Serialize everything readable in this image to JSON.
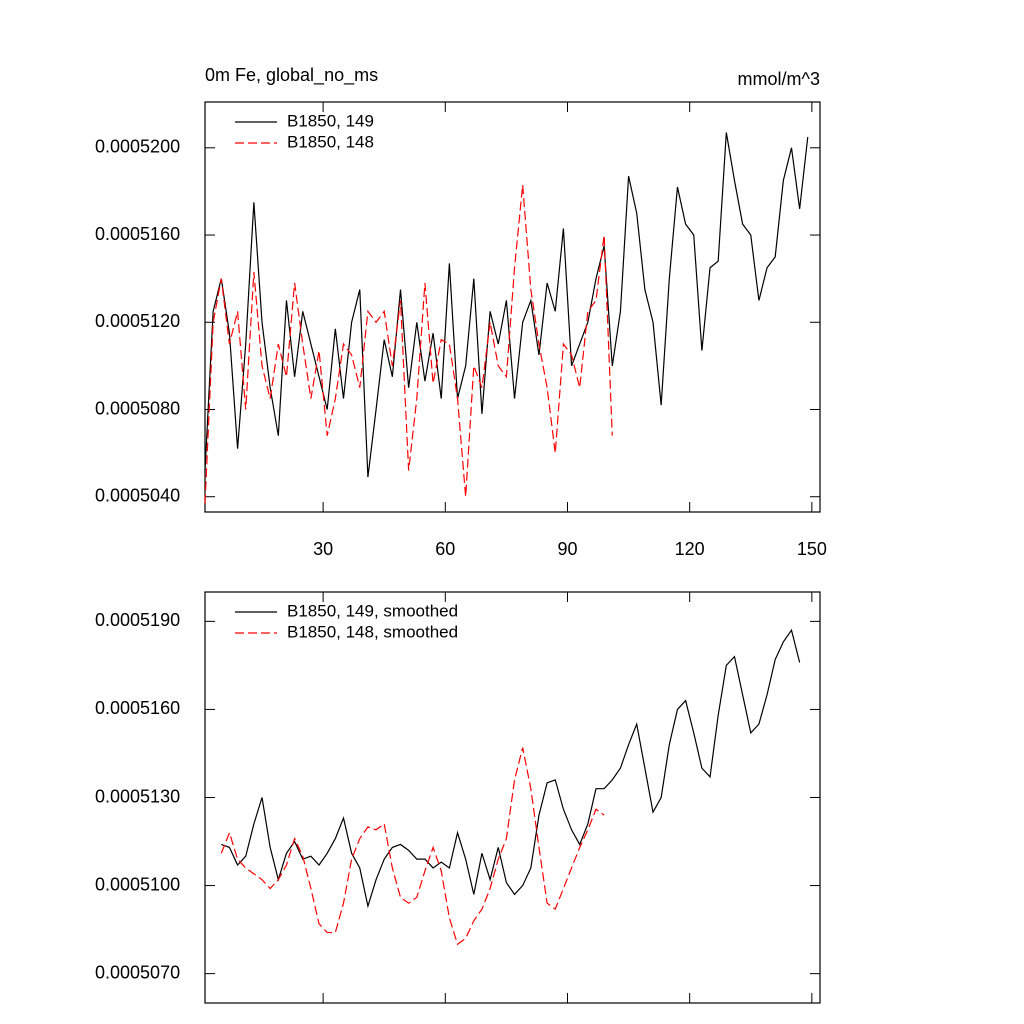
{
  "chart_data": [
    {
      "type": "line",
      "title": "0m Fe, global_no_ms",
      "right_title": "mmol/m^3",
      "xlim": [
        1,
        152
      ],
      "xticks": [
        30,
        60,
        90,
        120,
        150
      ],
      "xtick_labels": true,
      "ylim": [
        0.0005033,
        0.0005221
      ],
      "yticks": [
        {
          "value": 0.000504,
          "label": "0.0005040"
        },
        {
          "value": 0.000508,
          "label": "0.0005080"
        },
        {
          "value": 0.000512,
          "label": "0.0005120"
        },
        {
          "value": 0.000516,
          "label": "0.0005160"
        },
        {
          "value": 0.00052,
          "label": "0.0005200"
        }
      ],
      "series": [
        {
          "name": "B1850, 149",
          "color": "#000000",
          "dash": false,
          "x": [
            1,
            3,
            5,
            7,
            9,
            11,
            13,
            15,
            17,
            19,
            21,
            23,
            25,
            27,
            29,
            31,
            33,
            35,
            37,
            39,
            41,
            43,
            45,
            47,
            49,
            51,
            53,
            55,
            57,
            59,
            61,
            63,
            65,
            67,
            69,
            71,
            73,
            75,
            77,
            79,
            81,
            83,
            85,
            87,
            89,
            91,
            93,
            95,
            97,
            99,
            101,
            103,
            105,
            107,
            109,
            111,
            113,
            115,
            117,
            119,
            121,
            123,
            125,
            127,
            129,
            131,
            133,
            135,
            137,
            139,
            141,
            143,
            145,
            147,
            149
          ],
          "values": [
            0.0005052,
            0.0005125,
            0.000514,
            0.0005115,
            0.0005062,
            0.000511,
            0.0005175,
            0.000512,
            0.000509,
            0.0005068,
            0.000513,
            0.0005095,
            0.0005125,
            0.000511,
            0.0005095,
            0.000508,
            0.0005117,
            0.0005085,
            0.000512,
            0.0005135,
            0.0005049,
            0.000508,
            0.0005112,
            0.0005095,
            0.0005135,
            0.000509,
            0.000512,
            0.0005093,
            0.0005115,
            0.0005085,
            0.0005147,
            0.0005085,
            0.00051,
            0.000514,
            0.0005078,
            0.0005125,
            0.000511,
            0.000513,
            0.0005085,
            0.000512,
            0.000513,
            0.0005105,
            0.0005138,
            0.0005125,
            0.0005163,
            0.00051,
            0.000511,
            0.000512,
            0.000514,
            0.0005155,
            0.00051,
            0.0005125,
            0.0005187,
            0.000517,
            0.0005135,
            0.000512,
            0.0005082,
            0.000514,
            0.0005182,
            0.0005165,
            0.000516,
            0.0005107,
            0.0005145,
            0.0005148,
            0.0005207,
            0.0005185,
            0.0005165,
            0.000516,
            0.000513,
            0.0005145,
            0.000515,
            0.0005185,
            0.00052,
            0.0005172,
            0.0005205
          ]
        },
        {
          "name": "B1850, 148",
          "color": "#ff0000",
          "dash": true,
          "x": [
            1,
            3,
            5,
            7,
            9,
            11,
            13,
            15,
            17,
            19,
            21,
            23,
            25,
            27,
            29,
            31,
            33,
            35,
            37,
            39,
            41,
            43,
            45,
            47,
            49,
            51,
            53,
            55,
            57,
            59,
            61,
            63,
            65,
            67,
            69,
            71,
            73,
            75,
            77,
            79,
            81,
            83,
            85,
            87,
            89,
            91,
            93,
            95,
            97,
            99,
            101
          ],
          "values": [
            0.0005037,
            0.000512,
            0.000514,
            0.000511,
            0.0005125,
            0.000508,
            0.0005143,
            0.00051,
            0.0005085,
            0.000511,
            0.0005095,
            0.0005138,
            0.000511,
            0.0005085,
            0.0005107,
            0.0005068,
            0.0005085,
            0.000511,
            0.0005105,
            0.000509,
            0.0005125,
            0.000512,
            0.0005125,
            0.00051,
            0.000513,
            0.0005052,
            0.0005085,
            0.0005138,
            0.0005092,
            0.0005112,
            0.000511,
            0.0005085,
            0.000504,
            0.00051,
            0.000509,
            0.000512,
            0.00051,
            0.0005095,
            0.0005145,
            0.0005183,
            0.0005135,
            0.000511,
            0.000509,
            0.000506,
            0.000511,
            0.0005105,
            0.000509,
            0.0005125,
            0.000513,
            0.000516,
            0.0005068
          ]
        }
      ]
    },
    {
      "type": "line",
      "xlim": [
        1,
        152
      ],
      "xticks": [
        30,
        60,
        90,
        120,
        150
      ],
      "xtick_labels": false,
      "ylim": [
        0.000506,
        0.00052
      ],
      "yticks": [
        {
          "value": 0.000507,
          "label": "0.0005070"
        },
        {
          "value": 0.00051,
          "label": "0.0005100"
        },
        {
          "value": 0.000513,
          "label": "0.0005130"
        },
        {
          "value": 0.000516,
          "label": "0.0005160"
        },
        {
          "value": 0.000519,
          "label": "0.0005190"
        }
      ],
      "series": [
        {
          "name": "B1850, 149, smoothed",
          "color": "#000000",
          "dash": false,
          "x": [
            5,
            7,
            9,
            11,
            13,
            15,
            17,
            19,
            21,
            23,
            25,
            27,
            29,
            31,
            33,
            35,
            37,
            39,
            41,
            43,
            45,
            47,
            49,
            51,
            53,
            55,
            57,
            59,
            61,
            63,
            65,
            67,
            69,
            71,
            73,
            75,
            77,
            79,
            81,
            83,
            85,
            87,
            89,
            91,
            93,
            95,
            97,
            99,
            101,
            103,
            105,
            107,
            109,
            111,
            113,
            115,
            117,
            119,
            121,
            123,
            125,
            127,
            129,
            131,
            133,
            135,
            137,
            139,
            141,
            143,
            145,
            147
          ],
          "values": [
            0.0005114,
            0.0005113,
            0.0005107,
            0.000511,
            0.0005121,
            0.000513,
            0.0005113,
            0.0005102,
            0.0005111,
            0.0005115,
            0.0005109,
            0.000511,
            0.0005107,
            0.0005111,
            0.0005116,
            0.0005123,
            0.0005111,
            0.0005106,
            0.0005093,
            0.0005102,
            0.0005109,
            0.0005113,
            0.0005114,
            0.0005112,
            0.0005109,
            0.0005109,
            0.0005106,
            0.0005108,
            0.0005106,
            0.0005118,
            0.0005109,
            0.0005097,
            0.0005111,
            0.0005102,
            0.0005113,
            0.0005101,
            0.0005097,
            0.00051,
            0.0005106,
            0.0005124,
            0.0005135,
            0.0005136,
            0.0005126,
            0.0005119,
            0.0005114,
            0.0005121,
            0.0005133,
            0.0005133,
            0.0005136,
            0.000514,
            0.0005148,
            0.0005155,
            0.000514,
            0.0005125,
            0.000513,
            0.0005148,
            0.000516,
            0.0005163,
            0.0005152,
            0.000514,
            0.0005137,
            0.0005158,
            0.0005175,
            0.0005178,
            0.0005165,
            0.0005152,
            0.0005155,
            0.0005165,
            0.0005177,
            0.0005183,
            0.0005187,
            0.0005176
          ]
        },
        {
          "name": "B1850, 148, smoothed",
          "color": "#ff0000",
          "dash": true,
          "x": [
            5,
            7,
            9,
            11,
            13,
            15,
            17,
            19,
            21,
            23,
            25,
            27,
            29,
            31,
            33,
            35,
            37,
            39,
            41,
            43,
            45,
            47,
            49,
            51,
            53,
            55,
            57,
            59,
            61,
            63,
            65,
            67,
            69,
            71,
            73,
            75,
            77,
            79,
            81,
            83,
            85,
            87,
            89,
            91,
            93,
            95,
            97,
            99
          ],
          "values": [
            0.0005111,
            0.0005118,
            0.0005109,
            0.0005106,
            0.0005104,
            0.0005102,
            0.0005099,
            0.0005102,
            0.0005107,
            0.0005116,
            0.000511,
            0.0005099,
            0.0005087,
            0.0005084,
            0.0005084,
            0.0005094,
            0.0005109,
            0.0005116,
            0.000512,
            0.0005119,
            0.0005121,
            0.0005106,
            0.0005096,
            0.0005094,
            0.0005096,
            0.0005105,
            0.0005113,
            0.0005105,
            0.0005089,
            0.000508,
            0.0005082,
            0.0005088,
            0.0005092,
            0.0005099,
            0.0005109,
            0.0005116,
            0.0005136,
            0.0005147,
            0.0005133,
            0.0005113,
            0.0005094,
            0.0005092,
            0.0005099,
            0.0005106,
            0.0005113,
            0.0005119,
            0.0005126,
            0.0005124
          ]
        }
      ]
    }
  ]
}
